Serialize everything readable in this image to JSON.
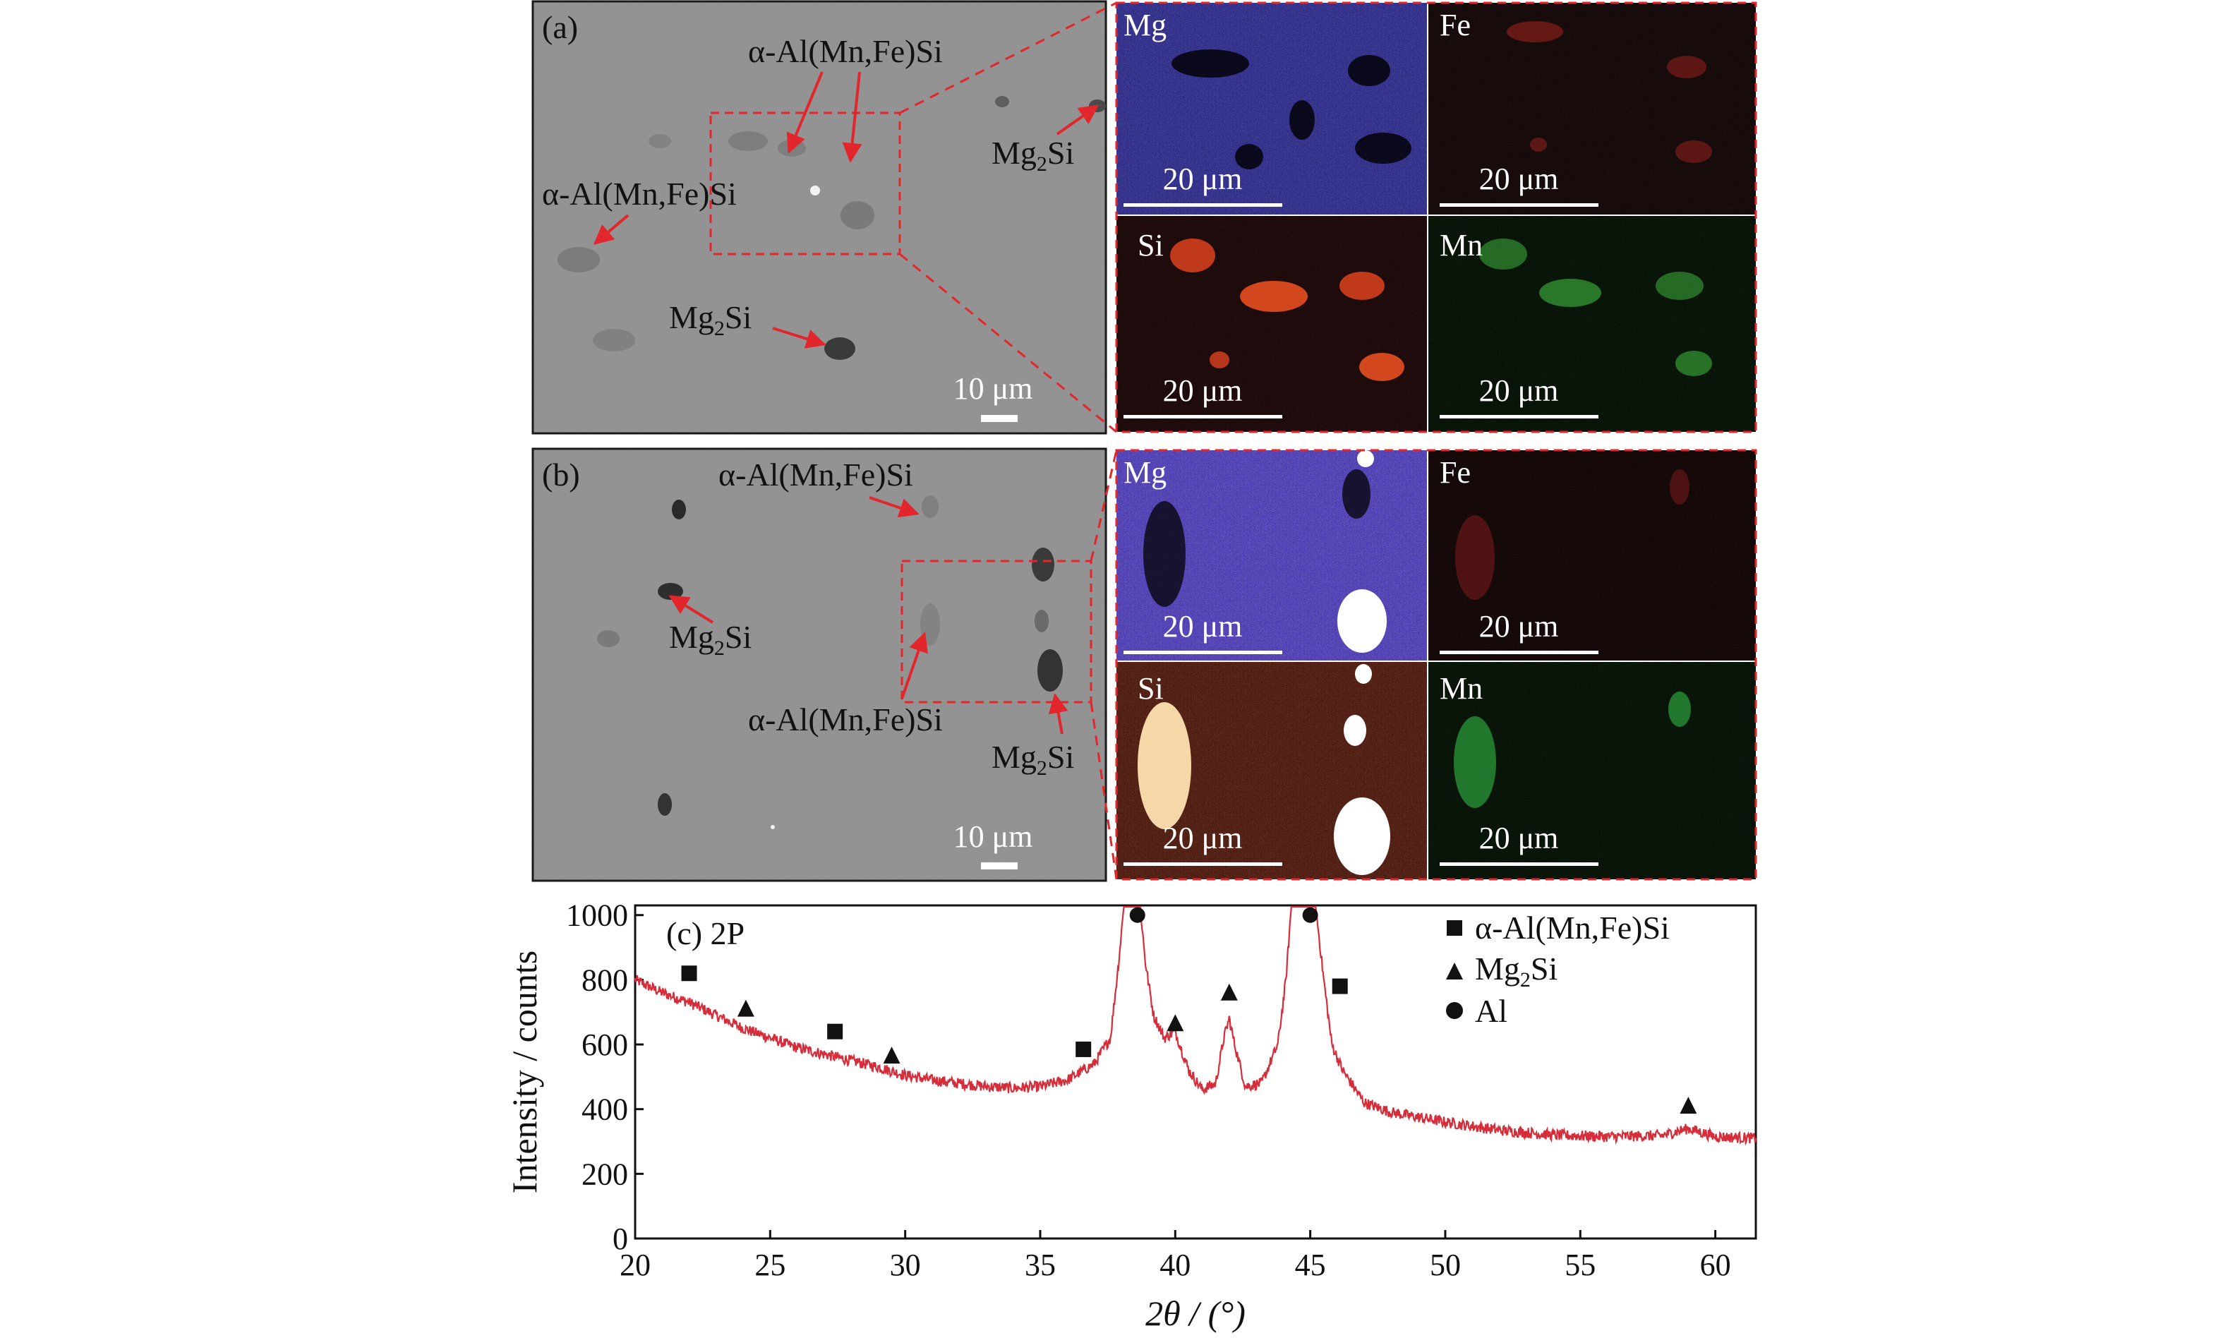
{
  "panel_a": {
    "label": "(a)",
    "annotations": {
      "alpha_top": "α-Al(Mn,Fe)Si",
      "alpha_left": "α-Al(Mn,Fe)Si",
      "mg2si_right_base": "Mg",
      "mg2si_right_sub": "2",
      "mg2si_right_tail": "Si",
      "mg2si_bottom_base": "Mg",
      "mg2si_bottom_sub": "2",
      "mg2si_bottom_tail": "Si"
    },
    "scale_bar": "10 μm",
    "maps": [
      {
        "element": "Mg",
        "scale": "20 μm",
        "color": "#3a38b8"
      },
      {
        "element": "Fe",
        "scale": "20 μm",
        "color": "#a22a22"
      },
      {
        "element": "Si",
        "scale": "20 μm",
        "color": "#c0391a"
      },
      {
        "element": "Mn",
        "scale": "20 μm",
        "color": "#2f8a2f"
      }
    ]
  },
  "panel_b": {
    "label": "(b)",
    "annotations": {
      "alpha_top": "α-Al(Mn,Fe)Si",
      "alpha_bottom": "α-Al(Mn,Fe)Si",
      "mg2si_left_base": "Mg",
      "mg2si_left_sub": "2",
      "mg2si_left_tail": "Si",
      "mg2si_right_base": "Mg",
      "mg2si_right_sub": "2",
      "mg2si_right_tail": "Si"
    },
    "scale_bar": "10 μm",
    "maps": [
      {
        "element": "Mg",
        "scale": "20 μm",
        "color": "#5a48d8"
      },
      {
        "element": "Fe",
        "scale": "20 μm",
        "color": "#8a2020"
      },
      {
        "element": "Si",
        "scale": "20 μm",
        "color": "#d2451c"
      },
      {
        "element": "Mn",
        "scale": "20 μm",
        "color": "#2a9a3a"
      }
    ]
  },
  "chart_data": {
    "type": "line",
    "title": "(c) 2P",
    "xlabel": "2θ / (°)",
    "ylabel": "Intensity / counts",
    "xlim": [
      20,
      61.5
    ],
    "ylim": [
      0,
      1030
    ],
    "x_ticks": [
      20,
      25,
      30,
      35,
      40,
      45,
      50,
      55,
      60
    ],
    "y_ticks": [
      0,
      200,
      400,
      600,
      800,
      1000
    ],
    "line_color": "#d62d3a",
    "series": [
      {
        "values": [
          [
            20,
            800
          ],
          [
            21,
            760
          ],
          [
            22,
            730
          ],
          [
            23,
            690
          ],
          [
            24,
            650
          ],
          [
            25,
            620
          ],
          [
            26,
            590
          ],
          [
            27,
            570
          ],
          [
            28,
            550
          ],
          [
            29,
            530
          ],
          [
            30,
            505
          ],
          [
            31,
            490
          ],
          [
            32,
            480
          ],
          [
            33,
            470
          ],
          [
            34,
            465
          ],
          [
            35,
            470
          ],
          [
            36,
            490
          ],
          [
            37,
            540
          ],
          [
            37.6,
            620
          ],
          [
            37.9,
            850
          ],
          [
            38.1,
            1030
          ],
          [
            38.7,
            1030
          ],
          [
            38.9,
            850
          ],
          [
            39.2,
            690
          ],
          [
            39.6,
            620
          ],
          [
            40.0,
            640
          ],
          [
            40.5,
            520
          ],
          [
            41.0,
            460
          ],
          [
            41.5,
            480
          ],
          [
            41.8,
            620
          ],
          [
            42.0,
            680
          ],
          [
            42.2,
            600
          ],
          [
            42.6,
            470
          ],
          [
            43.2,
            480
          ],
          [
            43.8,
            600
          ],
          [
            44.1,
            800
          ],
          [
            44.3,
            1030
          ],
          [
            45.2,
            1030
          ],
          [
            45.5,
            800
          ],
          [
            45.8,
            600
          ],
          [
            46.2,
            520
          ],
          [
            47,
            420
          ],
          [
            48,
            390
          ],
          [
            50,
            360
          ],
          [
            52,
            335
          ],
          [
            54,
            320
          ],
          [
            56,
            315
          ],
          [
            58,
            318
          ],
          [
            59,
            340
          ],
          [
            60,
            315
          ],
          [
            61.5,
            310
          ]
        ]
      }
    ],
    "legend": {
      "placement": "top-right",
      "entries": [
        {
          "marker": "square",
          "label_base": "α-Al(Mn,Fe)Si",
          "label_sub": "",
          "label_tail": ""
        },
        {
          "marker": "triangle",
          "label_base": "Mg",
          "label_sub": "2",
          "label_tail": "Si"
        },
        {
          "marker": "circle",
          "label_base": "Al",
          "label_sub": "",
          "label_tail": ""
        }
      ]
    },
    "markers": [
      {
        "type": "square",
        "x": 22.0,
        "y": 820
      },
      {
        "type": "triangle",
        "x": 24.1,
        "y": 710
      },
      {
        "type": "square",
        "x": 27.4,
        "y": 640
      },
      {
        "type": "triangle",
        "x": 29.5,
        "y": 565
      },
      {
        "type": "square",
        "x": 36.6,
        "y": 585
      },
      {
        "type": "circle",
        "x": 38.6,
        "y": 1000
      },
      {
        "type": "triangle",
        "x": 40.0,
        "y": 665
      },
      {
        "type": "triangle",
        "x": 42.0,
        "y": 760
      },
      {
        "type": "circle",
        "x": 45.0,
        "y": 1000
      },
      {
        "type": "square",
        "x": 46.1,
        "y": 780
      },
      {
        "type": "triangle",
        "x": 59.0,
        "y": 410
      }
    ]
  }
}
